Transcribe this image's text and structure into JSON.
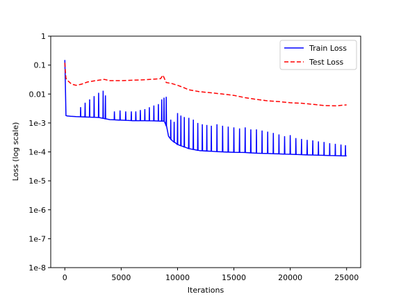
{
  "chart_data": {
    "type": "line",
    "xlabel": "Iterations",
    "ylabel": "Loss (log scale)",
    "xlim": [
      -1250,
      26250
    ],
    "ylim": [
      1e-08,
      1
    ],
    "y_scale": "log",
    "x_ticks": [
      0,
      5000,
      10000,
      15000,
      20000,
      25000
    ],
    "x_tick_labels": [
      "0",
      "5000",
      "10000",
      "15000",
      "20000",
      "25000"
    ],
    "y_ticks": [
      1,
      0.1,
      0.01,
      0.001,
      0.0001,
      1e-05,
      1e-06,
      1e-07,
      1e-08
    ],
    "y_tick_labels": [
      "1",
      "0.1",
      "0.01",
      "1e-3",
      "1e-4",
      "1e-5",
      "1e-6",
      "1e-7",
      "1e-8"
    ],
    "grid": false,
    "legend_position": "top-right",
    "series": [
      {
        "name": "Train Loss",
        "color": "#0000ff",
        "style": "solid",
        "x": [
          0,
          50,
          100,
          200,
          500,
          1000,
          2000,
          3000,
          4000,
          5000,
          6000,
          7000,
          8000,
          8500,
          8800,
          9000,
          9200,
          9500,
          10000,
          11000,
          12000,
          13000,
          14000,
          15000,
          16000,
          17000,
          18000,
          19000,
          20000,
          21000,
          22000,
          23000,
          24000,
          25000
        ],
        "y": [
          0.15,
          0.02,
          0.0018,
          0.00175,
          0.0017,
          0.00165,
          0.0016,
          0.00155,
          0.0013,
          0.00125,
          0.0012,
          0.0012,
          0.00118,
          0.00116,
          0.00115,
          0.0008,
          0.00035,
          0.00025,
          0.00018,
          0.00013,
          0.00011,
          0.000105,
          0.0001,
          9.7e-05,
          9.5e-05,
          9e-05,
          8.8e-05,
          8.5e-05,
          8.3e-05,
          8e-05,
          7.8e-05,
          7.6e-05,
          7.4e-05,
          7.3e-05
        ],
        "spikes_x": [
          1400,
          1800,
          2200,
          2600,
          3000,
          3400,
          3600,
          4400,
          4900,
          5400,
          5900,
          6300,
          6700,
          7100,
          7500,
          7900,
          8300,
          8600,
          8800,
          9000,
          9400,
          9700,
          10000,
          10300,
          10600,
          11000,
          11400,
          11800,
          12200,
          12600,
          13000,
          13500,
          14000,
          14500,
          15000,
          15500,
          16000,
          16500,
          17000,
          17500,
          18000,
          18500,
          19000,
          19500,
          20000,
          20500,
          21000,
          21500,
          22000,
          22500,
          23000,
          23500,
          24000,
          24500,
          24900
        ],
        "spikes_y": [
          0.0035,
          0.005,
          0.0065,
          0.0085,
          0.011,
          0.013,
          0.009,
          0.0025,
          0.0027,
          0.0025,
          0.0025,
          0.0025,
          0.0028,
          0.003,
          0.0035,
          0.004,
          0.0045,
          0.0065,
          0.0075,
          0.008,
          0.0013,
          0.0011,
          0.0022,
          0.0018,
          0.0016,
          0.0015,
          0.0013,
          0.001,
          0.0009,
          0.00085,
          0.0008,
          0.0009,
          0.0008,
          0.00075,
          0.0007,
          0.00065,
          0.0007,
          0.0006,
          0.0006,
          0.00055,
          0.0005,
          0.00045,
          0.0004,
          0.00035,
          0.00038,
          0.0003,
          0.00028,
          0.00026,
          0.00025,
          0.00023,
          0.00022,
          0.0002,
          0.00019,
          0.00018,
          0.00017
        ]
      },
      {
        "name": "Test Loss",
        "color": "#ff0000",
        "style": "dashed",
        "x": [
          0,
          50,
          100,
          300,
          600,
          1000,
          1500,
          2000,
          2500,
          3000,
          3500,
          4000,
          5000,
          6000,
          7000,
          8000,
          8500,
          8700,
          9000,
          9500,
          10000,
          10500,
          11000,
          12000,
          13000,
          14000,
          15000,
          16000,
          17000,
          18000,
          19000,
          20000,
          21000,
          22000,
          23000,
          24000,
          25000
        ],
        "y": [
          0.12,
          0.06,
          0.035,
          0.028,
          0.022,
          0.02,
          0.022,
          0.026,
          0.028,
          0.03,
          0.032,
          0.029,
          0.029,
          0.03,
          0.031,
          0.033,
          0.034,
          0.045,
          0.025,
          0.023,
          0.02,
          0.017,
          0.014,
          0.012,
          0.011,
          0.01,
          0.009,
          0.0075,
          0.0065,
          0.0058,
          0.0055,
          0.005,
          0.0048,
          0.0044,
          0.004,
          0.0039,
          0.0042
        ]
      }
    ]
  }
}
